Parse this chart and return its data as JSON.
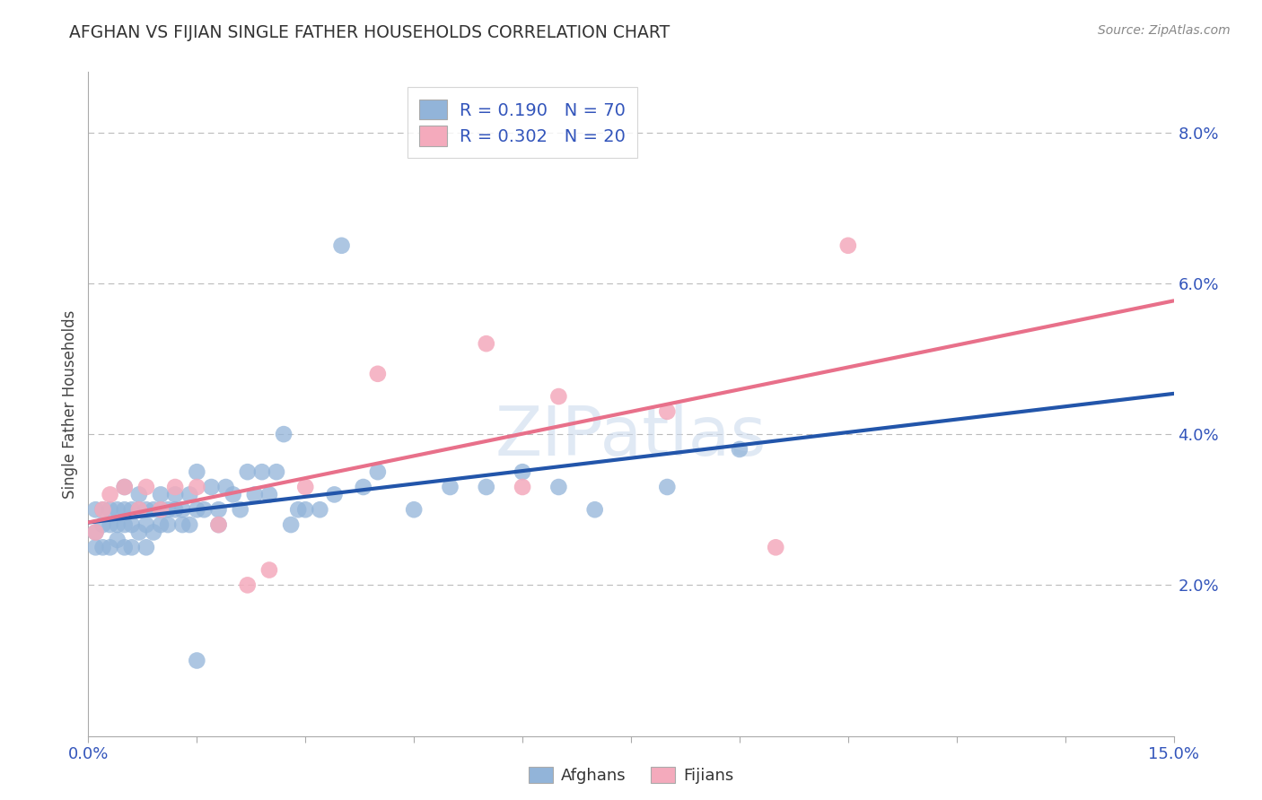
{
  "title": "AFGHAN VS FIJIAN SINGLE FATHER HOUSEHOLDS CORRELATION CHART",
  "source": "Source: ZipAtlas.com",
  "ylabel": "Single Father Households",
  "afghan_label": "Afghans",
  "fijian_label": "Fijians",
  "afghan_R": 0.19,
  "afghan_N": 70,
  "fijian_R": 0.302,
  "fijian_N": 20,
  "afghan_color": "#92B4D9",
  "fijian_color": "#F4AABC",
  "afghan_line_color": "#2255AA",
  "fijian_line_color": "#E8708A",
  "tick_color": "#3355BB",
  "title_color": "#333333",
  "source_color": "#888888",
  "grid_color": "#BBBBBB",
  "bg_color": "#FFFFFF",
  "legend_text_color": "#333333",
  "legend_num_color": "#3355BB",
  "xlim_min": 0.0,
  "xlim_max": 0.15,
  "ylim_min": 0.0,
  "ylim_max": 0.088,
  "ytick_vals": [
    0.02,
    0.04,
    0.06,
    0.08
  ],
  "ytick_labels": [
    "2.0%",
    "4.0%",
    "6.0%",
    "8.0%"
  ],
  "afghan_x": [
    0.001,
    0.001,
    0.001,
    0.002,
    0.002,
    0.002,
    0.003,
    0.003,
    0.003,
    0.004,
    0.004,
    0.004,
    0.005,
    0.005,
    0.005,
    0.005,
    0.006,
    0.006,
    0.006,
    0.007,
    0.007,
    0.007,
    0.008,
    0.008,
    0.008,
    0.009,
    0.009,
    0.01,
    0.01,
    0.01,
    0.011,
    0.011,
    0.012,
    0.012,
    0.013,
    0.013,
    0.014,
    0.014,
    0.015,
    0.015,
    0.016,
    0.017,
    0.018,
    0.018,
    0.019,
    0.02,
    0.021,
    0.022,
    0.023,
    0.024,
    0.025,
    0.026,
    0.027,
    0.028,
    0.029,
    0.03,
    0.032,
    0.034,
    0.035,
    0.038,
    0.04,
    0.045,
    0.05,
    0.055,
    0.06,
    0.065,
    0.07,
    0.08,
    0.09,
    0.015
  ],
  "afghan_y": [
    0.027,
    0.03,
    0.025,
    0.028,
    0.03,
    0.025,
    0.03,
    0.028,
    0.025,
    0.03,
    0.028,
    0.026,
    0.03,
    0.028,
    0.025,
    0.033,
    0.028,
    0.03,
    0.025,
    0.03,
    0.027,
    0.032,
    0.028,
    0.03,
    0.025,
    0.03,
    0.027,
    0.032,
    0.028,
    0.03,
    0.03,
    0.028,
    0.03,
    0.032,
    0.028,
    0.03,
    0.032,
    0.028,
    0.03,
    0.035,
    0.03,
    0.033,
    0.03,
    0.028,
    0.033,
    0.032,
    0.03,
    0.035,
    0.032,
    0.035,
    0.032,
    0.035,
    0.04,
    0.028,
    0.03,
    0.03,
    0.03,
    0.032,
    0.065,
    0.033,
    0.035,
    0.03,
    0.033,
    0.033,
    0.035,
    0.033,
    0.03,
    0.033,
    0.038,
    0.01
  ],
  "fijian_x": [
    0.001,
    0.002,
    0.003,
    0.005,
    0.007,
    0.008,
    0.01,
    0.012,
    0.015,
    0.018,
    0.022,
    0.025,
    0.03,
    0.04,
    0.055,
    0.06,
    0.065,
    0.08,
    0.095,
    0.105
  ],
  "fijian_y": [
    0.027,
    0.03,
    0.032,
    0.033,
    0.03,
    0.033,
    0.03,
    0.033,
    0.033,
    0.028,
    0.02,
    0.022,
    0.033,
    0.048,
    0.052,
    0.033,
    0.045,
    0.043,
    0.025,
    0.065
  ]
}
